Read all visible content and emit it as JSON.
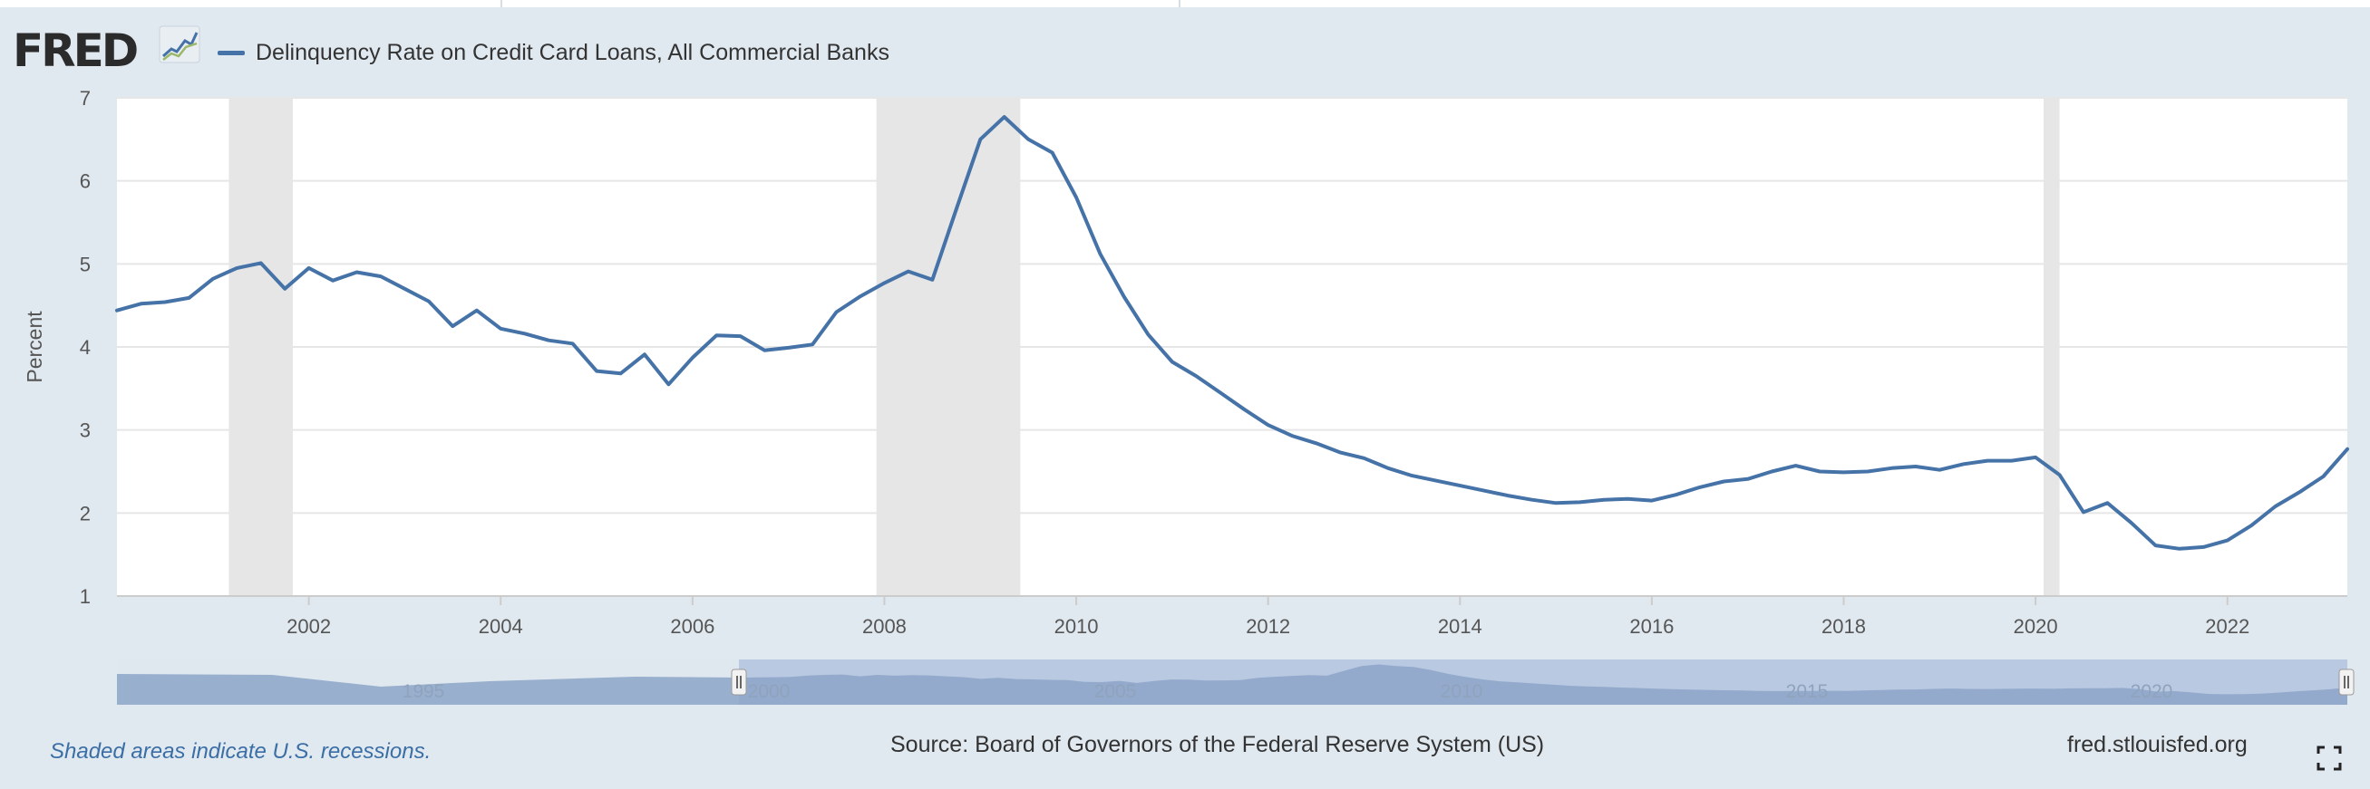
{
  "header": {
    "logo_text": "FRED",
    "legend_label": "Delinquency Rate on Credit Card Loans, All Commercial Banks"
  },
  "colors": {
    "series": "#4572a7",
    "recession": "#e6e6e6",
    "plot_bg": "#ffffff",
    "page_bg": "#e1e9f0",
    "navigator_fill": "#8ca4c8",
    "navigator_selected": "#b9c9e2"
  },
  "chart_data": {
    "type": "line",
    "title": "",
    "xlabel": "",
    "ylabel": "Percent",
    "ylim": [
      1,
      7
    ],
    "xlim": [
      "2000-01-01",
      "2023-04-01"
    ],
    "y_ticks": [
      "1",
      "2",
      "3",
      "4",
      "5",
      "6",
      "7"
    ],
    "x_ticks": [
      "2002",
      "2004",
      "2006",
      "2008",
      "2010",
      "2012",
      "2014",
      "2016",
      "2018",
      "2020",
      "2022"
    ],
    "grid": "horizontal",
    "legend": "top-left",
    "recessions": [
      [
        "2001-03-01",
        "2001-11-01"
      ],
      [
        "2007-12-01",
        "2009-06-01"
      ],
      [
        "2020-02-01",
        "2020-04-01"
      ]
    ],
    "series": [
      {
        "name": "Delinquency Rate on Credit Card Loans, All Commercial Banks",
        "x": [
          "2000-01-01",
          "2000-04-01",
          "2000-07-01",
          "2000-10-01",
          "2001-01-01",
          "2001-04-01",
          "2001-07-01",
          "2001-10-01",
          "2002-01-01",
          "2002-04-01",
          "2002-07-01",
          "2002-10-01",
          "2003-01-01",
          "2003-04-01",
          "2003-07-01",
          "2003-10-01",
          "2004-01-01",
          "2004-04-01",
          "2004-07-01",
          "2004-10-01",
          "2005-01-01",
          "2005-04-01",
          "2005-07-01",
          "2005-10-01",
          "2006-01-01",
          "2006-04-01",
          "2006-07-01",
          "2006-10-01",
          "2007-01-01",
          "2007-04-01",
          "2007-07-01",
          "2007-10-01",
          "2008-01-01",
          "2008-04-01",
          "2008-07-01",
          "2008-10-01",
          "2009-01-01",
          "2009-04-01",
          "2009-07-01",
          "2009-10-01",
          "2010-01-01",
          "2010-04-01",
          "2010-07-01",
          "2010-10-01",
          "2011-01-01",
          "2011-04-01",
          "2011-07-01",
          "2011-10-01",
          "2012-01-01",
          "2012-04-01",
          "2012-07-01",
          "2012-10-01",
          "2013-01-01",
          "2013-04-01",
          "2013-07-01",
          "2013-10-01",
          "2014-01-01",
          "2014-04-01",
          "2014-07-01",
          "2014-10-01",
          "2015-01-01",
          "2015-04-01",
          "2015-07-01",
          "2015-10-01",
          "2016-01-01",
          "2016-04-01",
          "2016-07-01",
          "2016-10-01",
          "2017-01-01",
          "2017-04-01",
          "2017-07-01",
          "2017-10-01",
          "2018-01-01",
          "2018-04-01",
          "2018-07-01",
          "2018-10-01",
          "2019-01-01",
          "2019-04-01",
          "2019-07-01",
          "2019-10-01",
          "2020-01-01",
          "2020-04-01",
          "2020-07-01",
          "2020-10-01",
          "2021-01-01",
          "2021-04-01",
          "2021-07-01",
          "2021-10-01",
          "2022-01-01",
          "2022-04-01",
          "2022-07-01",
          "2022-10-01",
          "2023-01-01",
          "2023-04-01"
        ],
        "values": [
          4.44,
          4.52,
          4.54,
          4.59,
          4.82,
          4.95,
          5.01,
          4.7,
          4.95,
          4.8,
          4.9,
          4.85,
          4.7,
          4.55,
          4.25,
          4.44,
          4.22,
          4.16,
          4.08,
          4.04,
          3.71,
          3.68,
          3.91,
          3.55,
          3.87,
          4.14,
          4.13,
          3.96,
          3.99,
          4.03,
          4.42,
          4.61,
          4.77,
          4.91,
          4.81,
          5.66,
          6.5,
          6.77,
          6.5,
          6.34,
          5.8,
          5.12,
          4.6,
          4.15,
          3.82,
          3.65,
          3.45,
          3.25,
          3.06,
          2.93,
          2.84,
          2.73,
          2.66,
          2.54,
          2.45,
          2.39,
          2.33,
          2.27,
          2.21,
          2.16,
          2.12,
          2.13,
          2.16,
          2.17,
          2.15,
          2.22,
          2.31,
          2.38,
          2.41,
          2.5,
          2.57,
          2.5,
          2.49,
          2.5,
          2.54,
          2.56,
          2.52,
          2.59,
          2.63,
          2.63,
          2.67,
          2.46,
          2.01,
          2.12,
          1.88,
          1.61,
          1.57,
          1.59,
          1.67,
          1.85,
          2.08,
          2.25,
          2.44,
          2.77
        ]
      }
    ]
  },
  "navigator": {
    "labels": [
      "1995",
      "2000",
      "2005",
      "2010",
      "2015",
      "2020"
    ]
  },
  "footer": {
    "recession_note": "Shaded areas indicate U.S. recessions.",
    "source": "Source: Board of Governors of the Federal Reserve System (US)",
    "site": "fred.stlouisfed.org"
  }
}
